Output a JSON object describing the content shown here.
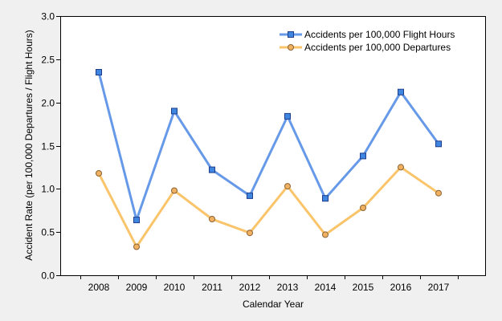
{
  "chart_data": {
    "type": "line",
    "title": "",
    "xlabel": "Calendar Year",
    "ylabel": "Accident Rate (per 100,000 Departures / Flight Hours)",
    "categories": [
      "2008",
      "2009",
      "2010",
      "2011",
      "2012",
      "2013",
      "2014",
      "2015",
      "2016",
      "2017"
    ],
    "ylim": [
      0,
      3.0
    ],
    "yticks": [
      "0.0",
      "0.5",
      "1.0",
      "1.5",
      "2.0",
      "2.5",
      "3.0"
    ],
    "grid": false,
    "legend_position": "top-right",
    "series": [
      {
        "name": "Accidents per 100,000 Flight Hours",
        "values": [
          2.35,
          0.64,
          1.9,
          1.22,
          0.92,
          1.84,
          0.89,
          1.38,
          2.12,
          1.52
        ],
        "color": "#6699e8",
        "marker": "square",
        "marker_fill": "#3f86e0",
        "marker_edge": "#1f3c8a"
      },
      {
        "name": "Accidents per 100,000 Departures",
        "values": [
          1.18,
          0.33,
          0.98,
          0.65,
          0.49,
          1.03,
          0.47,
          0.78,
          1.25,
          0.95
        ],
        "color": "#f9c46a",
        "marker": "circle",
        "marker_fill": "#f0b262",
        "marker_edge": "#8a6030"
      }
    ]
  }
}
